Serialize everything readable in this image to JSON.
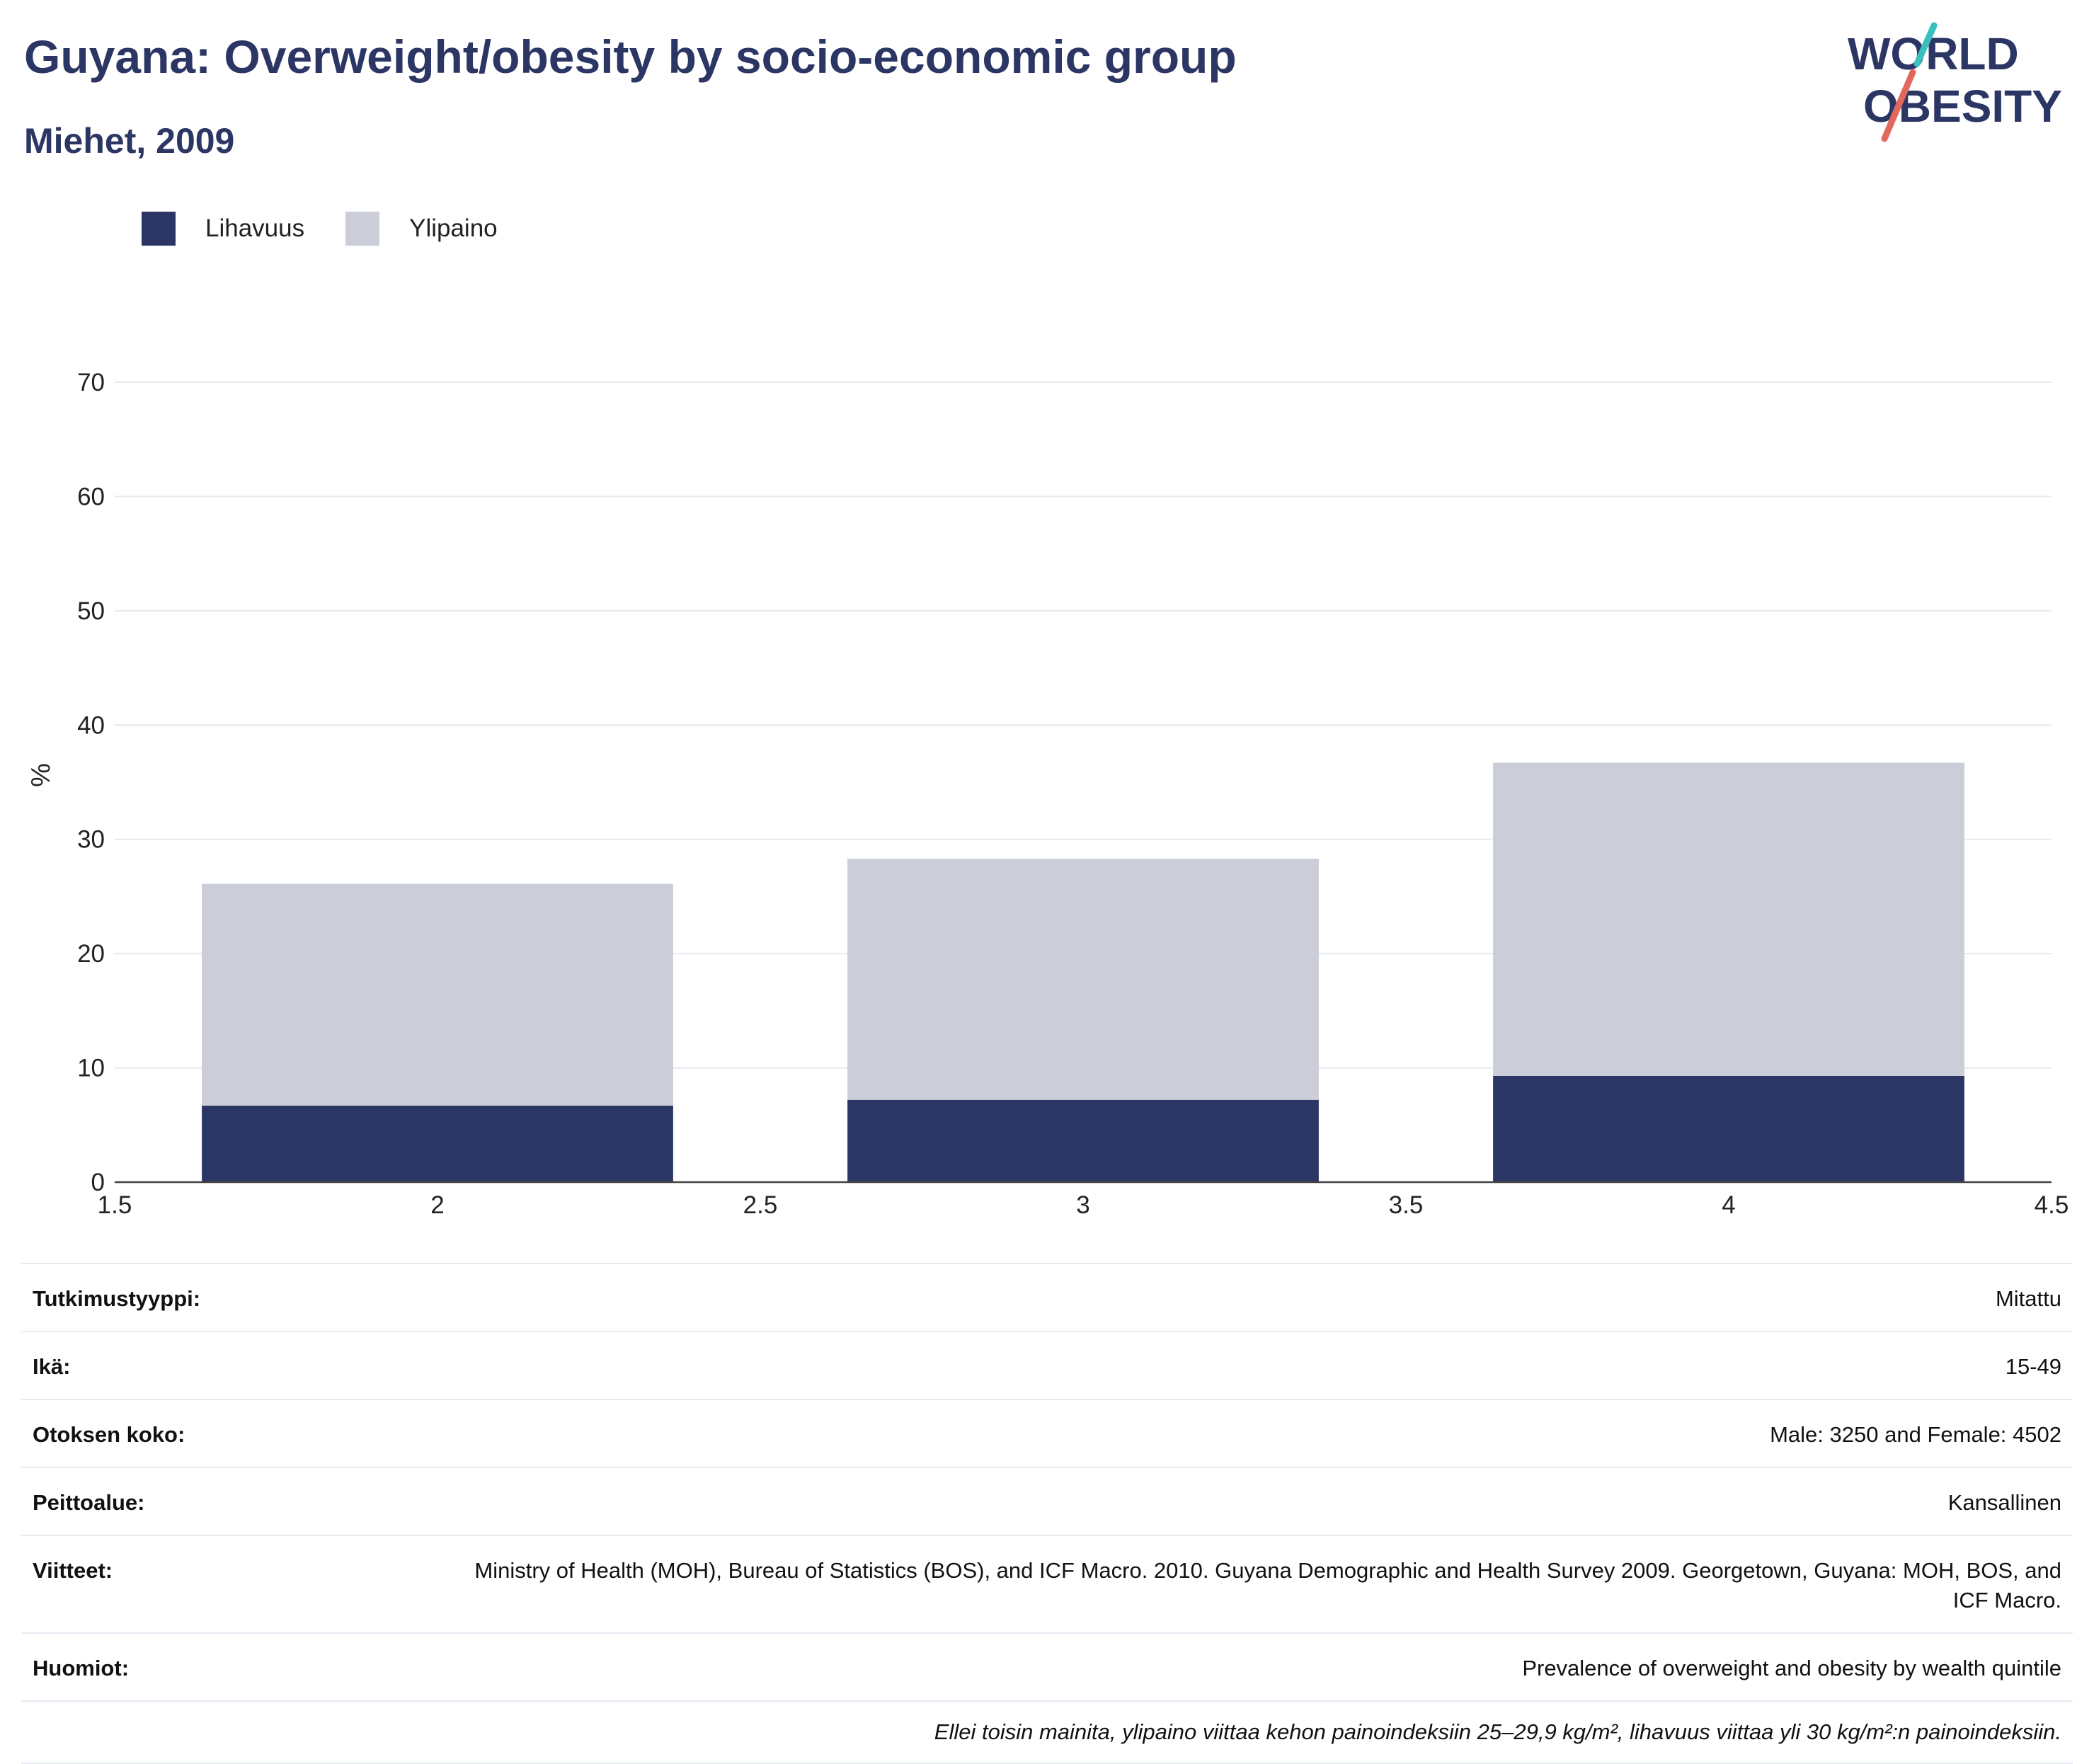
{
  "title": "Guyana: Overweight/obesity by socio-economic group",
  "subtitle": "Miehet, 2009",
  "logo": {
    "line1": "WORLD",
    "line2": "OBESITY",
    "accent_teal": "#3cbfbf",
    "accent_red": "#e2685e"
  },
  "legend": [
    {
      "label": "Lihavuus",
      "color": "#2b3664"
    },
    {
      "label": "Ylipaino",
      "color": "#cbcdd8"
    }
  ],
  "chart_data": {
    "type": "bar",
    "stacked": true,
    "x": [
      2,
      3,
      4
    ],
    "xlim": [
      1.5,
      4.5
    ],
    "xticks": [
      "1.5",
      "2",
      "2.5",
      "3",
      "3.5",
      "4",
      "4.5"
    ],
    "ylim": [
      0,
      70
    ],
    "yticks": [
      "0",
      "10",
      "20",
      "30",
      "40",
      "50",
      "60",
      "70"
    ],
    "ylabel": "%",
    "xlabel": "",
    "grid": true,
    "legend_position": "top-left",
    "series": [
      {
        "name": "Lihavuus",
        "color": "#2b3664",
        "values": [
          6.7,
          7.2,
          9.3
        ]
      },
      {
        "name": "Ylipaino",
        "color": "#cbcdd8",
        "values": [
          19.4,
          21.1,
          27.4
        ]
      }
    ]
  },
  "info": [
    {
      "key": "Tutkimustyyppi:",
      "value": "Mitattu"
    },
    {
      "key": "Ikä:",
      "value": "15-49"
    },
    {
      "key": "Otoksen koko:",
      "value": "Male: 3250 and Female: 4502"
    },
    {
      "key": "Peittoalue:",
      "value": "Kansallinen"
    },
    {
      "key": "Viitteet:",
      "value": "Ministry of Health (MOH), Bureau of Statistics (BOS), and ICF Macro. 2010. Guyana Demographic and Health Survey 2009. Georgetown, Guyana: MOH, BOS, and ICF Macro."
    },
    {
      "key": "Huomiot:",
      "value": "Prevalence of overweight and obesity by wealth quintile"
    }
  ],
  "footnote": "Ellei toisin mainita, ylipaino viittaa kehon painoindeksiin 25–29,9 kg/m², lihavuus viittaa yli 30 kg/m²:n painoindeksiin."
}
